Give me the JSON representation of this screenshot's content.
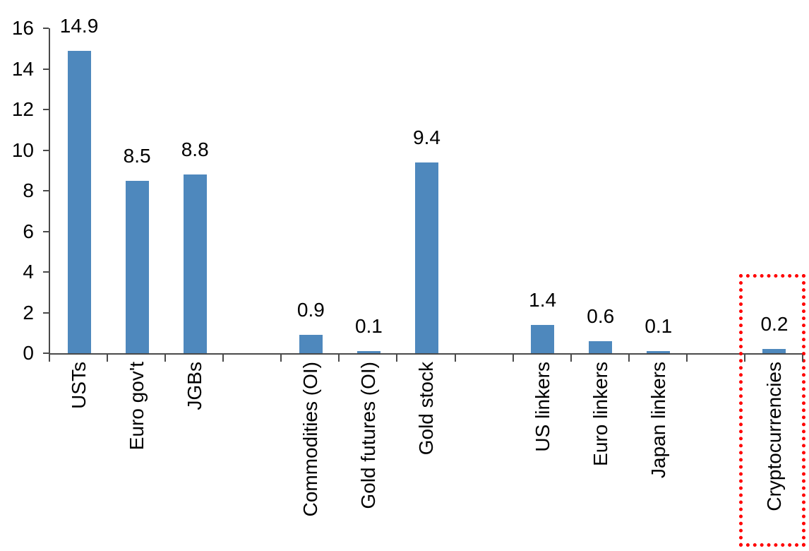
{
  "chart_data": {
    "type": "bar",
    "title": "",
    "xlabel": "",
    "ylabel": "",
    "categories": [
      "USTs",
      "Euro gov't",
      "JGBs",
      null,
      "Commodities (OI)",
      "Gold futures (OI)",
      "Gold stock",
      null,
      "US linkers",
      "Euro linkers",
      "Japan linkers",
      null,
      "Cryptocurrencies"
    ],
    "values": [
      14.9,
      8.5,
      8.8,
      null,
      0.9,
      0.1,
      9.4,
      null,
      1.4,
      0.6,
      0.1,
      null,
      0.2
    ],
    "data_labels": [
      "14.9",
      "8.5",
      "8.8",
      null,
      "0.9",
      "0.1",
      "9.4",
      null,
      "1.4",
      "0.6",
      "0.1",
      null,
      "0.2"
    ],
    "ylim": [
      0,
      16
    ],
    "y_ticks": [
      "16",
      "14",
      "12",
      "10",
      "8",
      "6",
      "4",
      "2",
      "0"
    ],
    "y_tick_values": [
      16,
      14,
      12,
      10,
      8,
      6,
      4,
      2,
      0
    ],
    "grid": false,
    "legend": "none",
    "bar_color": "#4e88bd",
    "axis_color": "#4a4a4a",
    "text_color": "#000000",
    "highlight": {
      "target": "Cryptocurrencies",
      "shape": "dotted-rectangle",
      "border_color": "#ff0000"
    }
  }
}
